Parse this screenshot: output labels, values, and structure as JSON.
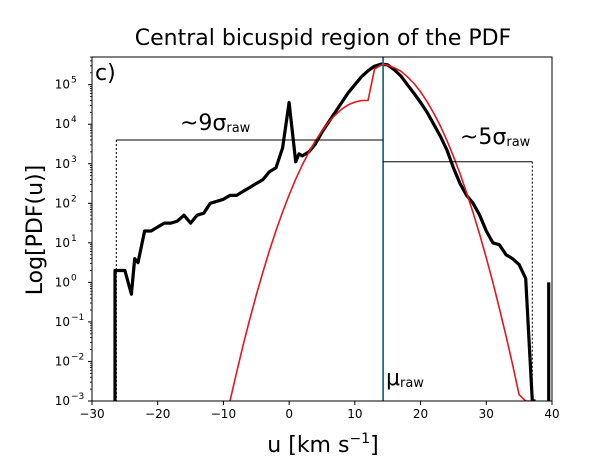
{
  "chart_data": {
    "type": "line",
    "title": "Central bicuspid region of the PDF",
    "panel_label": "c)",
    "xlabel": "u [km s",
    "xlabel_sup": "−1",
    "xlabel_end": "]",
    "ylabel": "Log[PDF(u)]",
    "xlim": [
      -30,
      40
    ],
    "ylim_log10": [
      -3,
      5.7
    ],
    "x_ticks": [
      -30,
      -20,
      -10,
      0,
      10,
      20,
      30,
      40
    ],
    "x_tick_labels": [
      "−30",
      "−20",
      "−10",
      "0",
      "10",
      "20",
      "30",
      "40"
    ],
    "y_ticks_log10": [
      -3,
      -2,
      -1,
      0,
      1,
      2,
      3,
      4,
      5
    ],
    "y_tick_labels": [
      {
        "base": "10",
        "exp": "−3"
      },
      {
        "base": "10",
        "exp": "−2"
      },
      {
        "base": "10",
        "exp": "−1"
      },
      {
        "base": "10",
        "exp": "0"
      },
      {
        "base": "10",
        "exp": "1"
      },
      {
        "base": "10",
        "exp": "2"
      },
      {
        "base": "10",
        "exp": "3"
      },
      {
        "base": "10",
        "exp": "4"
      },
      {
        "base": "10",
        "exp": "5"
      }
    ],
    "series": [
      {
        "color": "#000000",
        "x": [
          -26.5,
          -26.5,
          -25,
          -24,
          -23.5,
          -23,
          -22,
          -21,
          -20,
          -19,
          -18,
          -17,
          -16,
          -15,
          -14,
          -13,
          -12,
          -11,
          -10,
          -9,
          -8,
          -7,
          -6,
          -5,
          -4,
          -3,
          -2,
          -1,
          0,
          0.5,
          1,
          1.5,
          2,
          3,
          4,
          5,
          6,
          7,
          8,
          9,
          10,
          11,
          12,
          13,
          14,
          15,
          16,
          17,
          18,
          19,
          20,
          21,
          22,
          23,
          24,
          25,
          26,
          27,
          28,
          29,
          30,
          31,
          32,
          33,
          34,
          35,
          36,
          37,
          37,
          37.5
        ],
        "y_log10": [
          -3,
          0.3,
          0.3,
          -0.3,
          0.6,
          0.5,
          1.3,
          1.3,
          1.4,
          1.5,
          1.5,
          1.55,
          1.7,
          1.5,
          1.7,
          1.75,
          2.0,
          2.05,
          2.1,
          2.2,
          2.2,
          2.3,
          2.4,
          2.5,
          2.6,
          2.8,
          2.9,
          3.4,
          4.55,
          3.8,
          3.05,
          3.25,
          3.2,
          3.3,
          3.5,
          3.8,
          4.05,
          4.3,
          4.55,
          4.8,
          5.0,
          5.2,
          5.35,
          5.47,
          5.52,
          5.5,
          5.38,
          5.22,
          5.0,
          4.78,
          4.55,
          4.3,
          4.0,
          3.7,
          3.35,
          2.9,
          2.5,
          2.2,
          2.0,
          1.7,
          1.3,
          1.0,
          0.95,
          0.7,
          0.6,
          0.45,
          0.1,
          -3,
          -3,
          -3
        ]
      },
      {
        "color": "#000000",
        "x": [
          39.5,
          39.5
        ],
        "y_log10": [
          -3,
          0
        ]
      },
      {
        "color": "#e8161b",
        "x": [
          -9,
          -8,
          -7,
          -6,
          -5,
          -4,
          -3,
          -2,
          -1,
          0,
          1,
          2,
          3,
          4,
          5,
          6,
          7,
          8,
          9,
          10,
          11,
          12,
          13,
          14.3,
          15,
          16,
          17,
          18,
          19,
          20,
          21,
          22,
          23,
          24,
          25,
          26,
          27,
          28,
          29,
          30,
          31,
          32,
          33,
          34,
          35,
          36,
          37
        ],
        "y_log10": [
          -3.0,
          -2.28,
          -1.59,
          -0.94,
          -0.32,
          0.26,
          0.8,
          1.31,
          1.78,
          2.21,
          2.61,
          2.97,
          3.29,
          3.58,
          3.83,
          4.05,
          4.23,
          4.38,
          4.49,
          4.56,
          4.6,
          4.6,
          5.4,
          5.52,
          5.49,
          5.43,
          5.34,
          5.2,
          5.03,
          4.82,
          4.57,
          4.28,
          3.96,
          3.59,
          3.19,
          2.75,
          2.27,
          1.76,
          1.21,
          0.62,
          0.0,
          -0.66,
          -1.35,
          -2.08,
          -2.84,
          -3.0,
          -3.0
        ]
      }
    ],
    "vline": {
      "x": 14.3,
      "color": "#1f6f8b"
    },
    "annotations": {
      "mu_label": "μ",
      "mu_sub": "raw",
      "left_label": "~9σ",
      "left_sub": "raw",
      "right_label": "~5σ",
      "right_sub": "raw",
      "left_bracket": {
        "x_from": -26.3,
        "x_to": 14.3,
        "y_log10": 3.6
      },
      "right_bracket": {
        "x_from": 14.3,
        "x_to": 37.0,
        "y_log10": 3.05
      }
    }
  }
}
